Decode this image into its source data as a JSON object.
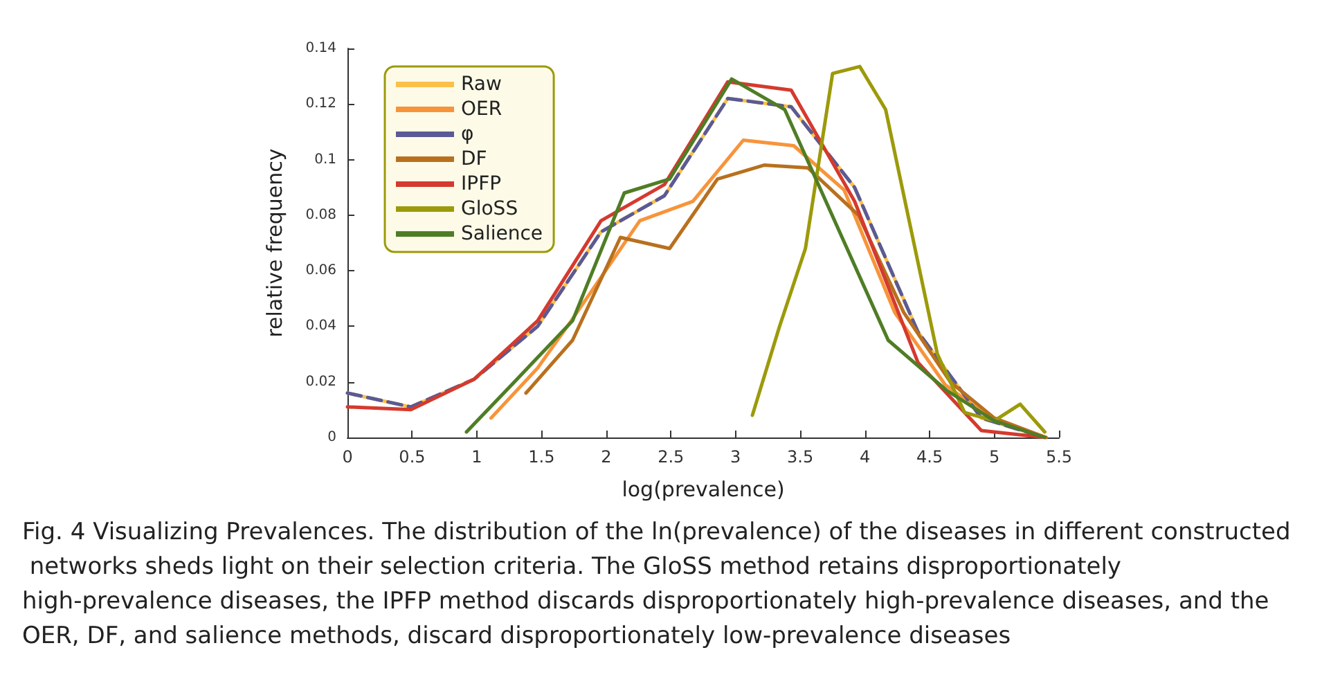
{
  "chart_data": {
    "type": "line",
    "xlabel": "log(prevalence)",
    "ylabel": "relative frequency",
    "xlim": [
      0,
      5.5
    ],
    "xticks": [
      0,
      0.5,
      1,
      1.5,
      2,
      2.5,
      3,
      3.5,
      4,
      4.5,
      5,
      5.5
    ],
    "ylim": [
      0,
      0.14
    ],
    "yticks": [
      0,
      0.02,
      0.04,
      0.06,
      0.08,
      0.1,
      0.12,
      0.14
    ],
    "grid": false,
    "legend": "top left",
    "marker": "none",
    "line_style": "solid",
    "annotations": [
      "Fig. 4 Visualizing Prevalences. The distribution of the ln(prevalence) of the diseases in different constructed networks sheds light on their selection criteria. The GloSS method retains disproportionately high-prevalence diseases, the IPFP method discards disproportionately high-prevalence diseases, and the OER, DF, and salience methods, discard disproportionately low-prevalence diseases"
    ],
    "series": [
      {
        "name": "Raw",
        "color": "#fbc04a",
        "x": [
          0,
          0.49,
          0.98,
          1.47,
          1.96,
          2.45,
          2.94,
          3.43,
          3.92,
          4.41,
          4.9,
          5.39
        ],
        "values": [
          0.016,
          0.011,
          0.021,
          0.04,
          0.074,
          0.087,
          0.122,
          0.119,
          0.09,
          0.038,
          0.007,
          0
        ]
      },
      {
        "name": "OER",
        "color": "#f7943a",
        "x": [
          1.11,
          1.47,
          1.73,
          2.26,
          2.67,
          3.06,
          3.45,
          3.84,
          4.23,
          4.62,
          5.0,
          5.4
        ],
        "values": [
          0.007,
          0.025,
          0.042,
          0.078,
          0.085,
          0.107,
          0.105,
          0.089,
          0.045,
          0.019,
          0.006,
          0
        ]
      },
      {
        "name": "φ",
        "color": "#5a5a96",
        "line_style": "dashed",
        "x": [
          0,
          0.49,
          0.98,
          1.47,
          1.96,
          2.45,
          2.94,
          3.43,
          3.92,
          4.41,
          4.9,
          5.39
        ],
        "values": [
          0.016,
          0.011,
          0.021,
          0.04,
          0.074,
          0.087,
          0.122,
          0.119,
          0.09,
          0.038,
          0.007,
          0
        ]
      },
      {
        "name": "DF",
        "color": "#b8701e",
        "x": [
          1.38,
          1.74,
          2.11,
          2.49,
          2.86,
          3.22,
          3.56,
          3.95,
          4.3,
          4.66,
          5.0,
          5.4
        ],
        "values": [
          0.016,
          0.035,
          0.072,
          0.068,
          0.093,
          0.098,
          0.097,
          0.08,
          0.045,
          0.02,
          0.007,
          0
        ]
      },
      {
        "name": "IPFP",
        "color": "#d43a2e",
        "x": [
          0,
          0.49,
          0.98,
          1.47,
          1.96,
          2.45,
          2.94,
          3.43,
          3.92,
          4.41,
          4.9,
          5.39
        ],
        "values": [
          0.011,
          0.01,
          0.021,
          0.042,
          0.078,
          0.091,
          0.128,
          0.125,
          0.085,
          0.027,
          0.0025,
          0
        ]
      },
      {
        "name": "GloSS",
        "color": "#9c9a0a",
        "x": [
          3.13,
          3.34,
          3.54,
          3.75,
          3.96,
          4.16,
          4.56,
          4.77,
          5.0,
          5.2,
          5.39
        ],
        "values": [
          0.008,
          0.04,
          0.068,
          0.131,
          0.1335,
          0.118,
          0.03,
          0.009,
          0.006,
          0.012,
          0.002
        ]
      },
      {
        "name": "Salience",
        "color": "#4f7d25",
        "x": [
          0.92,
          1.27,
          1.74,
          2.14,
          2.49,
          2.97,
          3.38,
          4.18,
          4.63,
          5.0,
          5.39
        ],
        "values": [
          0.002,
          0.019,
          0.042,
          0.088,
          0.093,
          0.129,
          0.118,
          0.035,
          0.017,
          0.006,
          0
        ]
      }
    ]
  }
}
